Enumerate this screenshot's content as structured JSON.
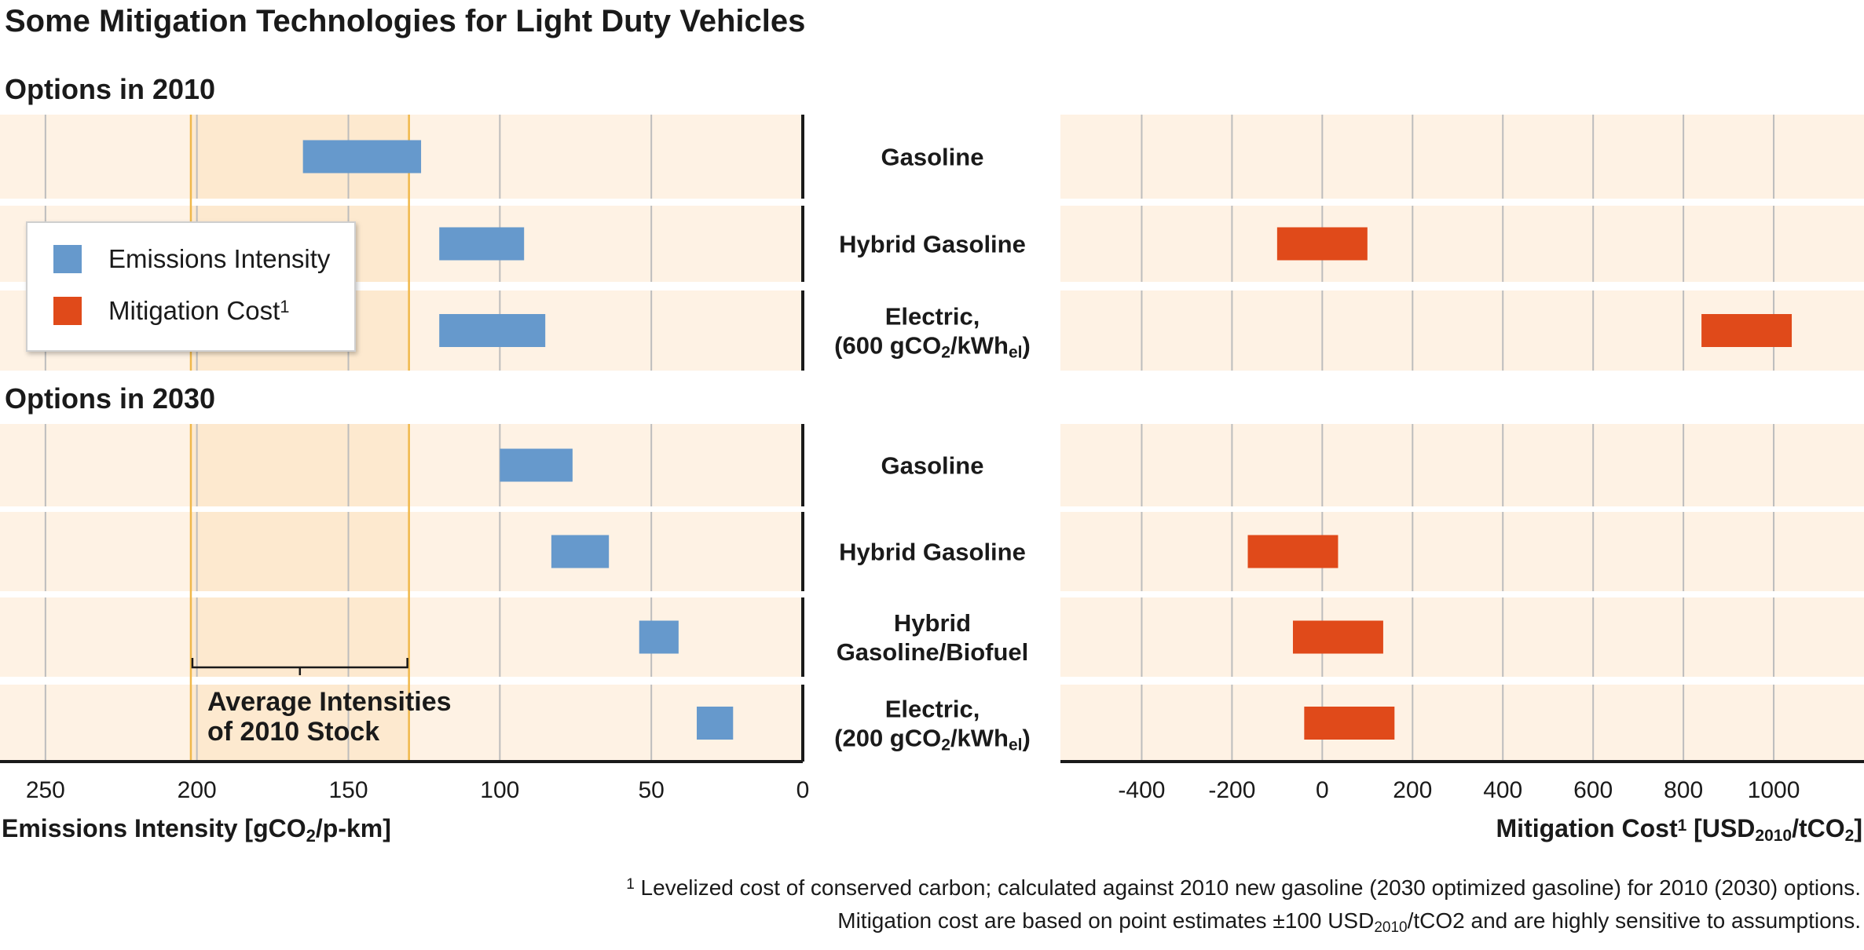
{
  "chart_data": {
    "type": "bar",
    "title": "Some Mitigation Technologies for Light Duty Vehicles",
    "sections": [
      {
        "label": "Options in 2010",
        "rows": [
          {
            "label_lines": [
              {
                "text": "Gasoline"
              }
            ],
            "emissions": [
              165,
              126
            ],
            "cost": null
          },
          {
            "label_lines": [
              {
                "text": "Hybrid Gasoline"
              }
            ],
            "emissions": [
              120,
              92
            ],
            "cost": [
              -100,
              100
            ]
          },
          {
            "label_lines": [
              {
                "text": "Electric,"
              },
              {
                "text": "(600 gCO",
                "sub1": "2",
                "mid": "/kWh",
                "sub2": "el",
                "end": ")"
              }
            ],
            "emissions": [
              120,
              85
            ],
            "cost": [
              840,
              1040
            ]
          }
        ]
      },
      {
        "label": "Options in 2030",
        "rows": [
          {
            "label_lines": [
              {
                "text": "Gasoline"
              }
            ],
            "emissions": [
              100,
              76
            ],
            "cost": null
          },
          {
            "label_lines": [
              {
                "text": "Hybrid Gasoline"
              }
            ],
            "emissions": [
              83,
              64
            ],
            "cost": [
              -165,
              35
            ]
          },
          {
            "label_lines": [
              {
                "text": "Hybrid"
              },
              {
                "text": "Gasoline/Biofuel"
              }
            ],
            "emissions": [
              54,
              41
            ],
            "cost": [
              -65,
              135
            ]
          },
          {
            "label_lines": [
              {
                "text": "Electric,"
              },
              {
                "text": "(200 gCO",
                "sub1": "2",
                "mid": "/kWh",
                "sub2": "el",
                "end": ")"
              }
            ],
            "emissions": [
              35,
              23
            ],
            "cost": [
              -40,
              160
            ]
          }
        ]
      }
    ],
    "left_axis": {
      "label": "Emissions Intensity [gCO",
      "label_sub": "2",
      "label_end": "/p-km]",
      "range": [
        265,
        0
      ],
      "ticks": [
        250,
        200,
        150,
        100,
        50,
        0
      ],
      "tick_labels": [
        "250",
        "200",
        "150",
        "100",
        "50",
        "0"
      ],
      "reversed": true
    },
    "right_axis": {
      "label": "Mitigation Cost",
      "label_sup": "1",
      "label_mid": " [USD",
      "label_sub": "2010",
      "label_end": "/tCO",
      "label_sub2": "2",
      "label_close": "]",
      "range": [
        -580,
        1200
      ],
      "ticks": [
        -400,
        -200,
        0,
        200,
        400,
        600,
        800,
        1000
      ],
      "tick_labels": [
        "-400",
        "-200",
        "0",
        "200",
        "400",
        "600",
        "800",
        "1000"
      ]
    },
    "average_band": {
      "range": [
        202,
        130
      ],
      "label_lines": [
        "Average Intensities",
        "of 2010 Stock"
      ]
    },
    "legend": {
      "placement": "upper-left",
      "entries": [
        {
          "name": "Emissions Intensity",
          "color": "#6699cc"
        },
        {
          "name": "Mitigation Cost",
          "sup": "1",
          "color": "#e04a1a"
        }
      ]
    },
    "footnote": {
      "line1": {
        "sup": "1",
        "text": " Levelized cost of conserved carbon; calculated against 2010 new gasoline (2030 optimized gasoline) for 2010 (2030) options."
      },
      "line2": {
        "pre": "Mitigation cost are based on point estimates ±100 USD",
        "sub": "2010",
        "post": "/tCO2 and are highly sensitive to assumptions."
      }
    },
    "colors": {
      "emissions": "#6699cc",
      "cost": "#e04a1a",
      "panel": "#fef2e4",
      "band": "#fde9cf",
      "band_line": "#f0b84a",
      "grid": "#bdbdbd",
      "axis": "#1a1a1a"
    }
  }
}
